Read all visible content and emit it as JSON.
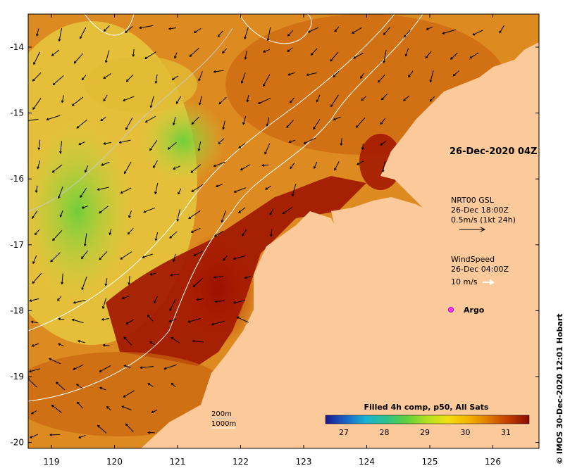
{
  "lat_ticks": [
    "-14",
    "-15",
    "-16",
    "-17",
    "-18",
    "-19",
    "-20"
  ],
  "lon_ticks": [
    "119",
    "120",
    "121",
    "122",
    "123",
    "124",
    "125",
    "126"
  ],
  "timestamp_label": "26-Dec-2020 04Z",
  "current_legend": {
    "title": "NRT00 GSL",
    "time": "26-Dec 18:00Z",
    "scale": "0.5m/s (1kt 24h)"
  },
  "wind_legend": {
    "title": "WindSpeed",
    "time": "26-Dec 04:00Z",
    "scale": "10 m/s"
  },
  "argo_label": "Argo",
  "isobath_labels": [
    "200m",
    "1000m"
  ],
  "colorbar": {
    "title": "Filled 4h comp, p50, All Sats",
    "ticks": [
      "27",
      "28",
      "29",
      "30",
      "31"
    ],
    "colors": [
      "#1a1a8c",
      "#1565c8",
      "#19b4d2",
      "#2bc38a",
      "#5fd23c",
      "#b4e020",
      "#f0e010",
      "#f5b400",
      "#e07a00",
      "#c03c00",
      "#8c0a00"
    ]
  },
  "credit": "© IMOS 30-Dec-2020 12:01 Hobart",
  "colors": {
    "land": "#fcc99a",
    "sea_warm": "#d77a1a",
    "sea_hot": "#a81600",
    "sea_cool": "#e6c840",
    "sea_green": "#7cd23c"
  }
}
